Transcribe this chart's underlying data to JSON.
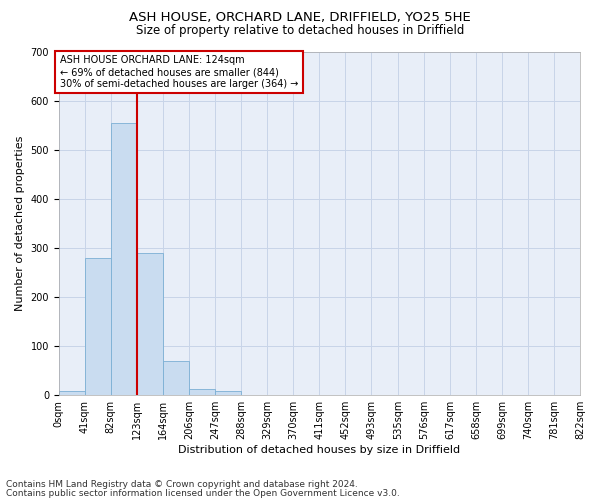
{
  "title1": "ASH HOUSE, ORCHARD LANE, DRIFFIELD, YO25 5HE",
  "title2": "Size of property relative to detached houses in Driffield",
  "xlabel": "Distribution of detached houses by size in Driffield",
  "ylabel": "Number of detached properties",
  "footer1": "Contains HM Land Registry data © Crown copyright and database right 2024.",
  "footer2": "Contains public sector information licensed under the Open Government Licence v3.0.",
  "annotation_line1": "ASH HOUSE ORCHARD LANE: 124sqm",
  "annotation_line2": "← 69% of detached houses are smaller (844)",
  "annotation_line3": "30% of semi-detached houses are larger (364) →",
  "property_size": 124,
  "bin_edges": [
    0,
    41,
    82,
    123,
    164,
    206,
    247,
    288,
    329,
    370,
    411,
    452,
    493,
    535,
    576,
    617,
    658,
    699,
    740,
    781,
    822
  ],
  "bin_labels": [
    "0sqm",
    "41sqm",
    "82sqm",
    "123sqm",
    "164sqm",
    "206sqm",
    "247sqm",
    "288sqm",
    "329sqm",
    "370sqm",
    "411sqm",
    "452sqm",
    "493sqm",
    "535sqm",
    "576sqm",
    "617sqm",
    "658sqm",
    "699sqm",
    "740sqm",
    "781sqm",
    "822sqm"
  ],
  "bar_heights": [
    8,
    280,
    555,
    290,
    70,
    13,
    8,
    0,
    0,
    0,
    0,
    0,
    0,
    0,
    0,
    0,
    0,
    0,
    0,
    0
  ],
  "bar_color": "#c9dcf0",
  "bar_edge_color": "#7bafd4",
  "vline_x": 124,
  "vline_color": "#cc0000",
  "ylim": [
    0,
    700
  ],
  "yticks": [
    0,
    100,
    200,
    300,
    400,
    500,
    600,
    700
  ],
  "grid_color": "#c8d4e8",
  "bg_color": "#e8eef8",
  "annotation_box_color": "#cc0000",
  "title1_fontsize": 9.5,
  "title2_fontsize": 8.5,
  "axis_label_fontsize": 8,
  "tick_fontsize": 7,
  "footer_fontsize": 6.5,
  "annotation_fontsize": 7
}
